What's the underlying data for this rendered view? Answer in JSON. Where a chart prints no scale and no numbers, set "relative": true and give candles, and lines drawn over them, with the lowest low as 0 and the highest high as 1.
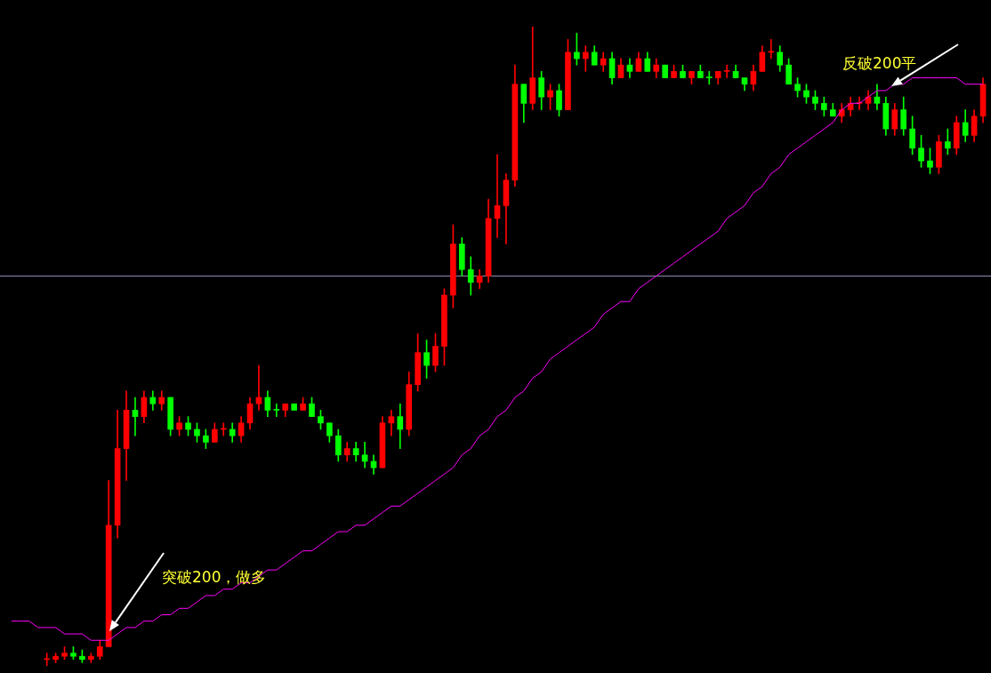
{
  "chart_data": {
    "type": "candlestick",
    "relative": true,
    "grid": false,
    "legend": false,
    "categories": [
      null,
      null,
      null,
      null,
      null,
      null,
      null,
      null,
      null,
      null,
      null,
      null,
      null,
      null,
      null,
      null,
      null,
      null,
      null,
      null,
      null,
      null,
      null,
      null,
      null,
      null,
      null,
      null,
      null,
      null,
      null,
      null,
      null,
      null,
      null,
      null,
      null,
      null,
      null,
      null,
      null,
      null,
      null,
      null,
      null,
      null,
      null,
      null,
      null,
      null,
      null,
      null,
      null,
      null,
      null,
      null,
      null,
      null,
      null,
      null,
      null,
      null,
      null,
      null,
      null,
      null,
      null,
      null,
      null,
      null,
      null,
      null,
      null,
      null,
      null,
      null,
      null,
      null,
      null,
      null,
      null,
      null,
      null,
      null,
      null,
      null,
      null,
      null,
      null,
      null,
      null,
      null,
      null,
      null,
      null,
      null,
      null,
      null,
      null,
      null,
      null,
      null,
      null,
      null,
      null,
      null,
      null,
      null,
      null,
      null,
      null
    ],
    "series": [
      {
        "ohlc": [
          null,
          null,
          null,
          null,
          [
            0.01,
            0.02,
            0,
            0.01
          ],
          [
            0.01,
            0.02,
            0.005,
            0.015
          ],
          [
            0.015,
            0.03,
            0.01,
            0.02
          ],
          [
            0.02,
            0.03,
            0.01,
            0.015
          ],
          [
            0.015,
            0.025,
            0.005,
            0.01
          ],
          [
            0.01,
            0.02,
            0.005,
            0.015
          ],
          [
            0.015,
            0.04,
            0.01,
            0.03
          ],
          [
            0.03,
            0.29,
            0.03,
            0.22
          ],
          [
            0.22,
            0.4,
            0.2,
            0.34
          ],
          [
            0.34,
            0.43,
            0.29,
            0.4
          ],
          [
            0.4,
            0.42,
            0.36,
            0.39
          ],
          [
            0.39,
            0.43,
            0.38,
            0.42
          ],
          [
            0.42,
            0.43,
            0.4,
            0.41
          ],
          [
            0.41,
            0.43,
            0.4,
            0.42
          ],
          [
            0.42,
            0.42,
            0.36,
            0.37
          ],
          [
            0.37,
            0.39,
            0.36,
            0.38
          ],
          [
            0.38,
            0.39,
            0.36,
            0.37
          ],
          [
            0.37,
            0.38,
            0.35,
            0.36
          ],
          [
            0.36,
            0.37,
            0.34,
            0.35
          ],
          [
            0.35,
            0.38,
            0.35,
            0.37
          ],
          [
            0.37,
            0.38,
            0.36,
            0.37
          ],
          [
            0.37,
            0.38,
            0.35,
            0.36
          ],
          [
            0.36,
            0.39,
            0.35,
            0.38
          ],
          [
            0.38,
            0.42,
            0.37,
            0.41
          ],
          [
            0.41,
            0.47,
            0.4,
            0.42
          ],
          [
            0.42,
            0.43,
            0.39,
            0.4
          ],
          [
            0.4,
            0.41,
            0.39,
            0.4
          ],
          [
            0.4,
            0.41,
            0.39,
            0.41
          ],
          [
            0.41,
            0.41,
            0.4,
            0.4
          ],
          [
            0.4,
            0.42,
            0.4,
            0.41
          ],
          [
            0.41,
            0.42,
            0.39,
            0.39
          ],
          [
            0.39,
            0.4,
            0.37,
            0.38
          ],
          [
            0.38,
            0.38,
            0.35,
            0.36
          ],
          [
            0.36,
            0.37,
            0.32,
            0.33
          ],
          [
            0.33,
            0.35,
            0.32,
            0.34
          ],
          [
            0.34,
            0.35,
            0.32,
            0.33
          ],
          [
            0.33,
            0.35,
            0.31,
            0.32
          ],
          [
            0.32,
            0.33,
            0.3,
            0.31
          ],
          [
            0.31,
            0.39,
            0.31,
            0.38
          ],
          [
            0.38,
            0.4,
            0.36,
            0.39
          ],
          [
            0.39,
            0.41,
            0.34,
            0.37
          ],
          [
            0.37,
            0.46,
            0.36,
            0.44
          ],
          [
            0.44,
            0.52,
            0.43,
            0.49
          ],
          [
            0.49,
            0.51,
            0.45,
            0.47
          ],
          [
            0.47,
            0.52,
            0.46,
            0.5
          ],
          [
            0.5,
            0.59,
            0.47,
            0.58
          ],
          [
            0.58,
            0.69,
            0.56,
            0.66
          ],
          [
            0.66,
            0.67,
            0.61,
            0.62
          ],
          [
            0.62,
            0.64,
            0.58,
            0.6
          ],
          [
            0.6,
            0.62,
            0.59,
            0.61
          ],
          [
            0.61,
            0.73,
            0.6,
            0.7
          ],
          [
            0.7,
            0.8,
            0.67,
            0.72
          ],
          [
            0.72,
            0.77,
            0.66,
            0.76
          ],
          [
            0.76,
            0.94,
            0.75,
            0.91
          ],
          [
            0.91,
            0.91,
            0.85,
            0.88
          ],
          [
            0.88,
            1.0,
            0.87,
            0.92
          ],
          [
            0.92,
            0.93,
            0.87,
            0.89
          ],
          [
            0.89,
            0.91,
            0.87,
            0.9
          ],
          [
            0.9,
            0.91,
            0.86,
            0.87
          ],
          [
            0.87,
            0.98,
            0.87,
            0.96
          ],
          [
            0.96,
            0.99,
            0.94,
            0.95
          ],
          [
            0.95,
            0.97,
            0.93,
            0.96
          ],
          [
            0.96,
            0.97,
            0.94,
            0.94
          ],
          [
            0.94,
            0.96,
            0.93,
            0.95
          ],
          [
            0.95,
            0.96,
            0.91,
            0.92
          ],
          [
            0.92,
            0.95,
            0.92,
            0.94
          ],
          [
            0.94,
            0.95,
            0.92,
            0.93
          ],
          [
            0.93,
            0.96,
            0.93,
            0.95
          ],
          [
            0.95,
            0.96,
            0.93,
            0.93
          ],
          [
            0.93,
            0.95,
            0.92,
            0.94
          ],
          [
            0.94,
            0.94,
            0.92,
            0.92
          ],
          [
            0.92,
            0.94,
            0.92,
            0.93
          ],
          [
            0.93,
            0.94,
            0.92,
            0.92
          ],
          [
            0.92,
            0.93,
            0.91,
            0.93
          ],
          [
            0.93,
            0.94,
            0.92,
            0.92
          ],
          [
            0.92,
            0.93,
            0.91,
            0.92
          ],
          [
            0.92,
            0.93,
            0.91,
            0.93
          ],
          [
            0.93,
            0.94,
            0.92,
            0.93
          ],
          [
            0.93,
            0.94,
            0.92,
            0.92
          ],
          [
            0.92,
            0.92,
            0.9,
            0.91
          ],
          [
            0.91,
            0.94,
            0.9,
            0.93
          ],
          [
            0.93,
            0.97,
            0.93,
            0.96
          ],
          [
            0.96,
            0.98,
            0.95,
            0.96
          ],
          [
            0.96,
            0.97,
            0.93,
            0.94
          ],
          [
            0.94,
            0.95,
            0.91,
            0.91
          ],
          [
            0.91,
            0.92,
            0.89,
            0.9
          ],
          [
            0.9,
            0.91,
            0.88,
            0.89
          ],
          [
            0.89,
            0.9,
            0.87,
            0.88
          ],
          [
            0.88,
            0.89,
            0.86,
            0.87
          ],
          [
            0.87,
            0.88,
            0.86,
            0.86
          ],
          [
            0.86,
            0.88,
            0.85,
            0.87
          ],
          [
            0.87,
            0.89,
            0.86,
            0.88
          ],
          [
            0.88,
            0.89,
            0.87,
            0.88
          ],
          [
            0.88,
            0.9,
            0.87,
            0.89
          ],
          [
            0.89,
            0.91,
            0.87,
            0.88
          ],
          [
            0.88,
            0.89,
            0.83,
            0.84
          ],
          [
            0.84,
            0.88,
            0.83,
            0.87
          ],
          [
            0.87,
            0.89,
            0.83,
            0.84
          ],
          [
            0.84,
            0.86,
            0.8,
            0.81
          ],
          [
            0.81,
            0.83,
            0.78,
            0.79
          ],
          [
            0.79,
            0.81,
            0.77,
            0.78
          ],
          [
            0.78,
            0.83,
            0.77,
            0.82
          ],
          [
            0.82,
            0.84,
            0.8,
            0.81
          ],
          [
            0.81,
            0.86,
            0.8,
            0.85
          ],
          [
            0.85,
            0.87,
            0.82,
            0.83
          ],
          [
            0.83,
            0.87,
            0.82,
            0.86
          ],
          [
            0.86,
            0.92,
            0.85,
            0.91
          ]
        ],
        "colors": [
          null,
          null,
          null,
          null,
          "#ff0000",
          "#ff0000",
          "#ff0000",
          "#00ff00",
          "#00ff00",
          "#ff0000",
          "#ff0000",
          "#ff0000",
          "#ff0000",
          "#ff0000",
          "#00ff00",
          "#ff0000",
          "#00ff00",
          "#ff0000",
          "#00ff00",
          "#ff0000",
          "#00ff00",
          "#00ff00",
          "#00ff00",
          "#ff0000",
          "#ff0000",
          "#00ff00",
          "#ff0000",
          "#ff0000",
          "#ff0000",
          "#00ff00",
          "#00ff00",
          "#ff0000",
          "#00ff00",
          "#ff0000",
          "#00ff00",
          "#00ff00",
          "#00ff00",
          "#00ff00",
          "#ff0000",
          "#00ff00",
          "#00ff00",
          "#00ff00",
          "#ff0000",
          "#ff0000",
          "#00ff00",
          "#ff0000",
          "#ff0000",
          "#00ff00",
          "#ff0000",
          "#ff0000",
          "#ff0000",
          "#00ff00",
          "#00ff00",
          "#ff0000",
          "#ff0000",
          "#ff0000",
          "#ff0000",
          "#ff0000",
          "#00ff00",
          "#ff0000",
          "#00ff00",
          "#ff0000",
          "#00ff00",
          "#ff0000",
          "#00ff00",
          "#ff0000",
          "#00ff00",
          "#ff0000",
          "#00ff00",
          "#ff0000",
          "#00ff00",
          "#ff0000",
          "#00ff00",
          "#ff0000",
          "#00ff00",
          "#ff0000",
          "#00ff00",
          "#ff0000",
          "#00ff00",
          "#00ff00",
          "#ff0000",
          "#ff0000",
          "#00ff00",
          "#00ff00",
          "#ff0000",
          "#ff0000",
          "#ff0000",
          "#00ff00",
          "#00ff00",
          "#00ff00",
          "#00ff00",
          "#00ff00",
          "#00ff00",
          "#00ff00",
          "#ff0000",
          "#ff0000",
          "#ff0000",
          "#ff0000",
          "#00ff00",
          "#00ff00",
          "#ff0000",
          "#00ff00",
          "#00ff00",
          "#00ff00",
          "#00ff00",
          "#ff0000",
          "#00ff00",
          "#ff0000",
          "#00ff00",
          "#ff0000",
          "#ff0000"
        ]
      },
      {
        "type": "line",
        "color": "#ff00ff",
        "values": [
          0.07,
          0.07,
          0.07,
          0.06,
          0.06,
          0.06,
          0.05,
          0.05,
          0.05,
          0.04,
          0.04,
          0.04,
          0.05,
          0.06,
          0.06,
          0.07,
          0.07,
          0.08,
          0.08,
          0.09,
          0.09,
          0.1,
          0.11,
          0.11,
          0.12,
          0.12,
          0.13,
          0.13,
          0.14,
          0.15,
          0.15,
          0.16,
          0.17,
          0.18,
          0.18,
          0.19,
          0.2,
          0.21,
          0.21,
          0.22,
          0.22,
          0.23,
          0.24,
          0.25,
          0.25,
          0.26,
          0.27,
          0.28,
          0.29,
          0.3,
          0.31,
          0.33,
          0.34,
          0.36,
          0.37,
          0.39,
          0.4,
          0.42,
          0.43,
          0.45,
          0.46,
          0.48,
          0.49,
          0.5,
          0.51,
          0.52,
          0.53,
          0.55,
          0.56,
          0.57,
          0.57,
          0.59,
          0.6,
          0.61,
          0.62,
          0.63,
          0.64,
          0.65,
          0.66,
          0.67,
          0.68,
          0.7,
          0.71,
          0.72,
          0.74,
          0.75,
          0.77,
          0.78,
          0.8,
          0.81,
          0.82,
          0.83,
          0.84,
          0.85,
          0.87,
          0.88,
          0.88,
          0.89,
          0.9,
          0.9,
          0.91,
          0.91,
          0.92,
          0.92,
          0.92,
          0.92,
          0.92,
          0.92,
          0.91,
          0.91,
          0.91
        ]
      }
    ],
    "ref_lines": [
      {
        "axis": "y",
        "value": 0.61,
        "color": "#8c8cb4"
      }
    ],
    "annotations": [
      "突破200，做多",
      "反破200平"
    ]
  }
}
